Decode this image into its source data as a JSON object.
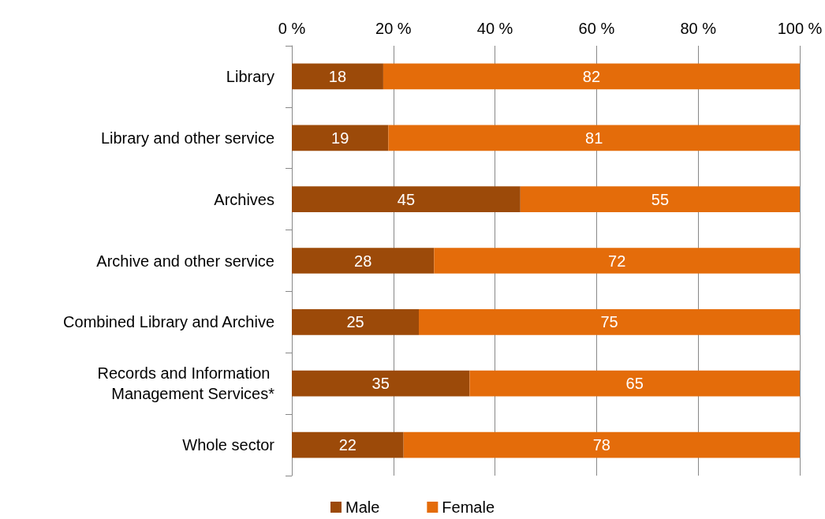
{
  "chart_data": {
    "type": "bar",
    "orientation": "horizontal",
    "stacked": true,
    "categories": [
      "Library",
      "Library and other service",
      "Archives",
      "Archive and other service",
      "Combined Library and Archive",
      "Records and Information Management Services*",
      "Whole sector"
    ],
    "series": [
      {
        "name": "Male",
        "color": "#9c4a09",
        "values": [
          18,
          19,
          45,
          28,
          25,
          35,
          22
        ]
      },
      {
        "name": "Female",
        "color": "#e46c0a",
        "values": [
          82,
          81,
          55,
          72,
          75,
          65,
          78
        ]
      }
    ],
    "xlim": [
      0,
      100
    ],
    "xticks": [
      {
        "value": 0,
        "label": "0 %"
      },
      {
        "value": 20,
        "label": "20 %"
      },
      {
        "value": 40,
        "label": "40 %"
      },
      {
        "value": 60,
        "label": "60 %"
      },
      {
        "value": 80,
        "label": "80 %"
      },
      {
        "value": 100,
        "label": "100 %"
      }
    ],
    "grid": "x",
    "legend": "bottom",
    "data_labels": true
  }
}
